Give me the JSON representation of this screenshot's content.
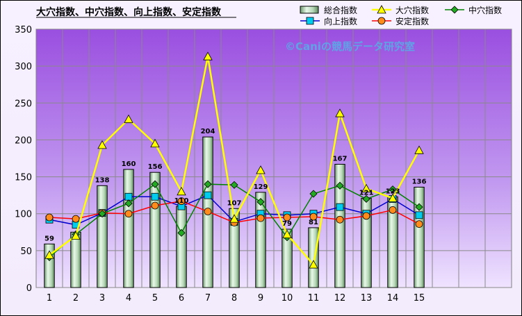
{
  "chart_data": {
    "type": "bar",
    "title": "大穴指数、中穴指数、向上指数、安定指数",
    "watermark": "©Caniの競馬データ研究室",
    "categories": [
      "1",
      "2",
      "3",
      "4",
      "5",
      "6",
      "7",
      "8",
      "9",
      "10",
      "11",
      "12",
      "13",
      "14",
      "15"
    ],
    "x_slots": 18,
    "ylim": [
      0,
      350
    ],
    "yticks": [
      0,
      50,
      100,
      150,
      200,
      250,
      300,
      350
    ],
    "grid": true,
    "legend_position": "top-right",
    "series": [
      {
        "name": "総合指数",
        "type": "bar",
        "color": "#8fbc8f",
        "values": [
          59,
          75,
          138,
          160,
          156,
          110,
          204,
          107,
          129,
          79,
          81,
          167,
          121,
          123,
          136
        ],
        "labels": [
          "59",
          "",
          "138",
          "160",
          "156",
          "110",
          "204",
          "107",
          "129",
          "79",
          "81",
          "167",
          "121",
          "123",
          "136"
        ]
      },
      {
        "name": "大穴指数",
        "type": "line",
        "color": "#ffff00",
        "marker": "triangle",
        "values": [
          44,
          70,
          193,
          228,
          195,
          130,
          313,
          93,
          159,
          72,
          31,
          236,
          134,
          121,
          186
        ]
      },
      {
        "name": "中穴指数",
        "type": "line",
        "color": "#008000",
        "marker": "diamond",
        "values": [
          41,
          72,
          100,
          114,
          140,
          74,
          140,
          139,
          116,
          68,
          127,
          138,
          120,
          133,
          109
        ]
      },
      {
        "name": "向上指数",
        "type": "line",
        "color": "#0000cc",
        "marker": "square",
        "values": [
          92,
          85,
          101,
          123,
          123,
          110,
          125,
          89,
          100,
          98,
          100,
          109,
          100,
          120,
          98
        ]
      },
      {
        "name": "安定指数",
        "type": "line",
        "color": "#ff0000",
        "marker": "circle",
        "values": [
          95,
          93,
          101,
          100,
          111,
          117,
          103,
          88,
          94,
          95,
          96,
          92,
          97,
          105,
          86
        ]
      }
    ]
  }
}
